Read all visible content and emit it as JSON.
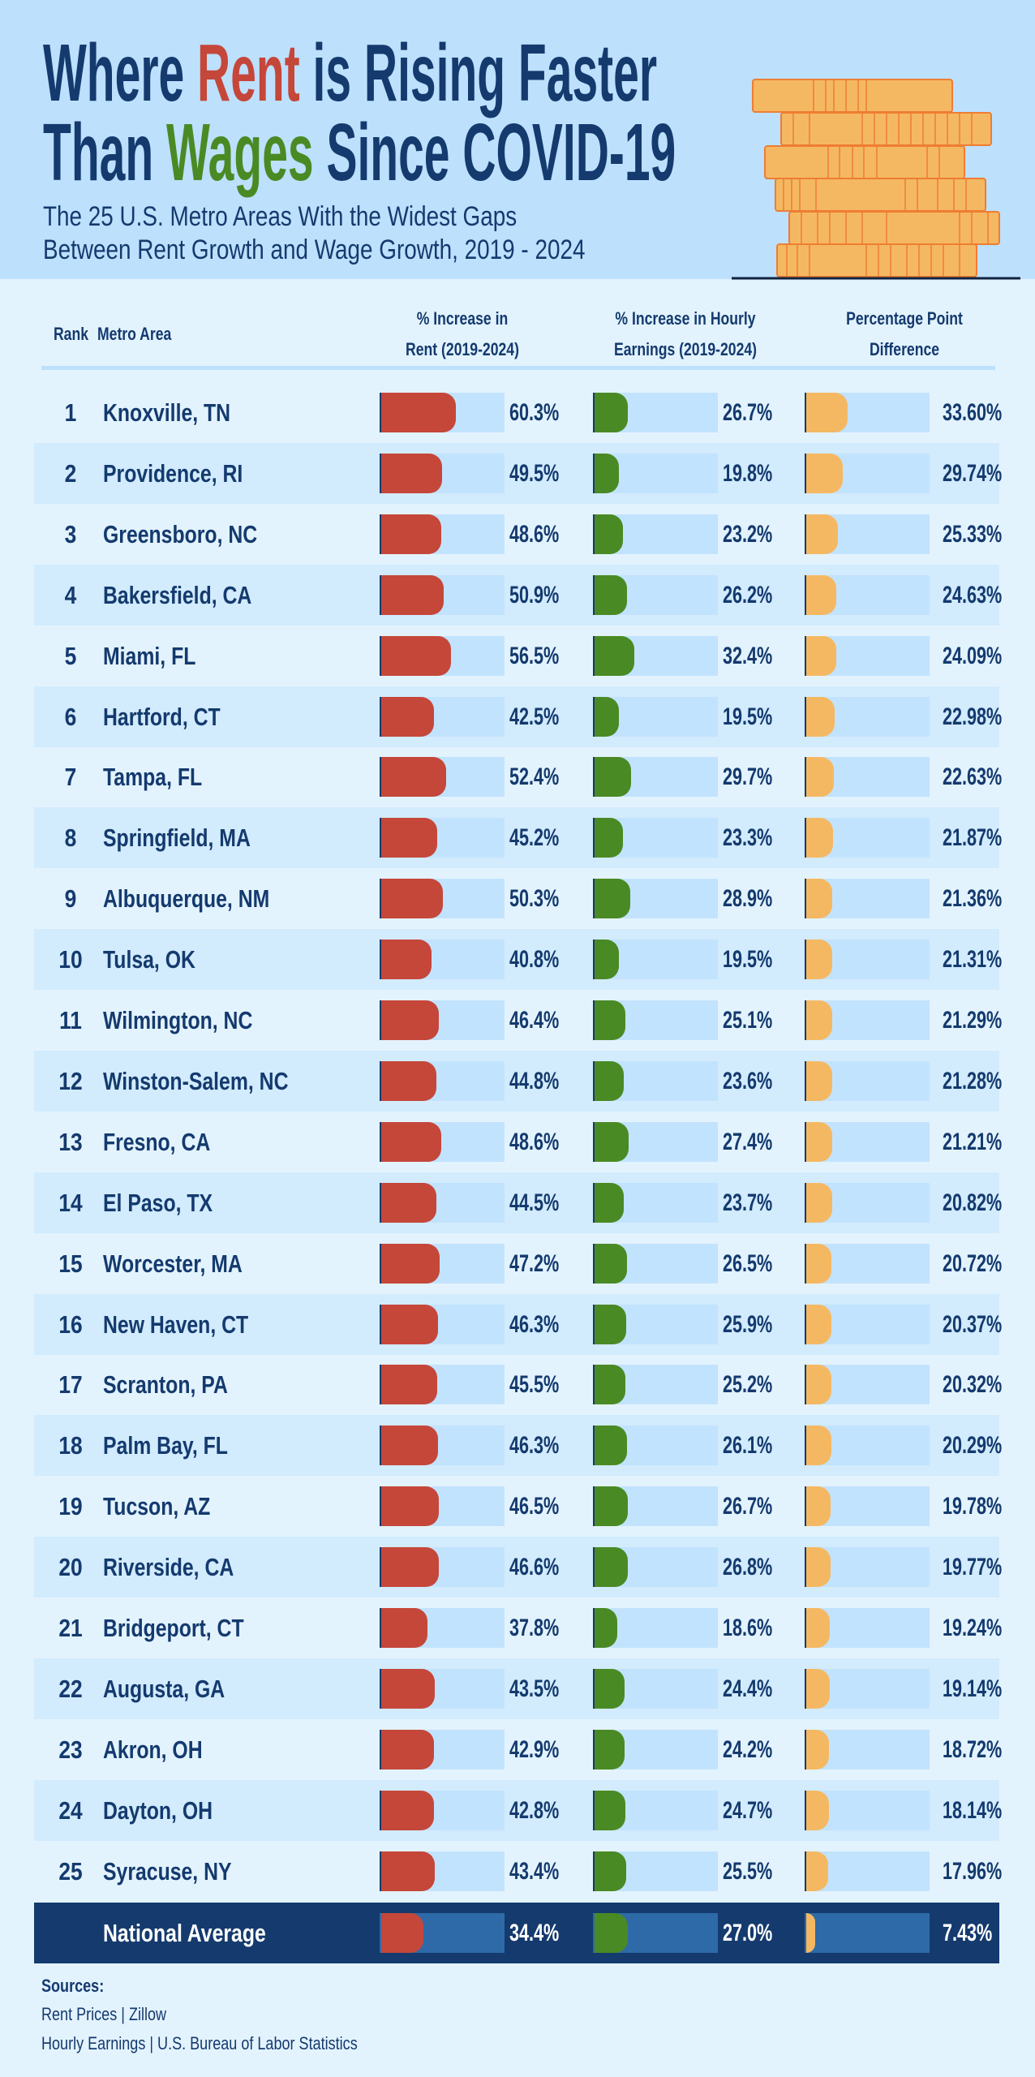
{
  "header": {
    "title_line1": {
      "pre": "Where ",
      "rent": "Rent",
      "post": " is Rising Faster"
    },
    "title_line2": {
      "pre": "Than ",
      "wages": "Wages",
      "post": " Since COVID-19"
    },
    "subtitle_line1": "The 25 U.S. Metro Areas With the Widest Gaps",
    "subtitle_line2": "Between Rent Growth and Wage Growth, 2019 - 2024",
    "illustration": "coin-stack-icon"
  },
  "columns": {
    "rank": "Rank",
    "metro": "Metro Area",
    "rent_1": "% Increase in",
    "rent_2": "Rent (2019-2024)",
    "wage_1": "% Increase in Hourly",
    "wage_2": "Earnings (2019-2024)",
    "diff_1": "Percentage Point",
    "diff_2": "Difference"
  },
  "colors": {
    "rent": "#c5473a",
    "wages": "#4a8a24",
    "difference": "#f5b862",
    "navy": "#143a6e",
    "bar_bg": "#c2e3fd"
  },
  "chart_data": {
    "type": "table",
    "bar_scale": [
      0,
      100
    ],
    "rows": [
      {
        "rank": "1",
        "metro": "Knoxville, TN",
        "rent": 60.3,
        "rent_label": "60.3%",
        "wage": 26.7,
        "wage_label": "26.7%",
        "diff": 33.6,
        "diff_label": "33.60%"
      },
      {
        "rank": "2",
        "metro": "Providence, RI",
        "rent": 49.5,
        "rent_label": "49.5%",
        "wage": 19.8,
        "wage_label": "19.8%",
        "diff": 29.74,
        "diff_label": "29.74%"
      },
      {
        "rank": "3",
        "metro": "Greensboro, NC",
        "rent": 48.6,
        "rent_label": "48.6%",
        "wage": 23.2,
        "wage_label": "23.2%",
        "diff": 25.33,
        "diff_label": "25.33%"
      },
      {
        "rank": "4",
        "metro": "Bakersfield, CA",
        "rent": 50.9,
        "rent_label": "50.9%",
        "wage": 26.2,
        "wage_label": "26.2%",
        "diff": 24.63,
        "diff_label": "24.63%"
      },
      {
        "rank": "5",
        "metro": "Miami, FL",
        "rent": 56.5,
        "rent_label": "56.5%",
        "wage": 32.4,
        "wage_label": "32.4%",
        "diff": 24.09,
        "diff_label": "24.09%"
      },
      {
        "rank": "6",
        "metro": "Hartford, CT",
        "rent": 42.5,
        "rent_label": "42.5%",
        "wage": 19.5,
        "wage_label": "19.5%",
        "diff": 22.98,
        "diff_label": "22.98%"
      },
      {
        "rank": "7",
        "metro": "Tampa, FL",
        "rent": 52.4,
        "rent_label": "52.4%",
        "wage": 29.7,
        "wage_label": "29.7%",
        "diff": 22.63,
        "diff_label": "22.63%"
      },
      {
        "rank": "8",
        "metro": "Springfield, MA",
        "rent": 45.2,
        "rent_label": "45.2%",
        "wage": 23.3,
        "wage_label": "23.3%",
        "diff": 21.87,
        "diff_label": "21.87%"
      },
      {
        "rank": "9",
        "metro": "Albuquerque, NM",
        "rent": 50.3,
        "rent_label": "50.3%",
        "wage": 28.9,
        "wage_label": "28.9%",
        "diff": 21.36,
        "diff_label": "21.36%"
      },
      {
        "rank": "10",
        "metro": "Tulsa, OK",
        "rent": 40.8,
        "rent_label": "40.8%",
        "wage": 19.5,
        "wage_label": "19.5%",
        "diff": 21.31,
        "diff_label": "21.31%"
      },
      {
        "rank": "11",
        "metro": "Wilmington, NC",
        "rent": 46.4,
        "rent_label": "46.4%",
        "wage": 25.1,
        "wage_label": "25.1%",
        "diff": 21.29,
        "diff_label": "21.29%"
      },
      {
        "rank": "12",
        "metro": "Winston-Salem, NC",
        "rent": 44.8,
        "rent_label": "44.8%",
        "wage": 23.6,
        "wage_label": "23.6%",
        "diff": 21.28,
        "diff_label": "21.28%"
      },
      {
        "rank": "13",
        "metro": "Fresno, CA",
        "rent": 48.6,
        "rent_label": "48.6%",
        "wage": 27.4,
        "wage_label": "27.4%",
        "diff": 21.21,
        "diff_label": "21.21%"
      },
      {
        "rank": "14",
        "metro": "El Paso, TX",
        "rent": 44.5,
        "rent_label": "44.5%",
        "wage": 23.7,
        "wage_label": "23.7%",
        "diff": 20.82,
        "diff_label": "20.82%"
      },
      {
        "rank": "15",
        "metro": "Worcester, MA",
        "rent": 47.2,
        "rent_label": "47.2%",
        "wage": 26.5,
        "wage_label": "26.5%",
        "diff": 20.72,
        "diff_label": "20.72%"
      },
      {
        "rank": "16",
        "metro": "New Haven, CT",
        "rent": 46.3,
        "rent_label": "46.3%",
        "wage": 25.9,
        "wage_label": "25.9%",
        "diff": 20.37,
        "diff_label": "20.37%"
      },
      {
        "rank": "17",
        "metro": "Scranton, PA",
        "rent": 45.5,
        "rent_label": "45.5%",
        "wage": 25.2,
        "wage_label": "25.2%",
        "diff": 20.32,
        "diff_label": "20.32%"
      },
      {
        "rank": "18",
        "metro": "Palm Bay, FL",
        "rent": 46.3,
        "rent_label": "46.3%",
        "wage": 26.1,
        "wage_label": "26.1%",
        "diff": 20.29,
        "diff_label": "20.29%"
      },
      {
        "rank": "19",
        "metro": "Tucson, AZ",
        "rent": 46.5,
        "rent_label": "46.5%",
        "wage": 26.7,
        "wage_label": "26.7%",
        "diff": 19.78,
        "diff_label": "19.78%"
      },
      {
        "rank": "20",
        "metro": "Riverside, CA",
        "rent": 46.6,
        "rent_label": "46.6%",
        "wage": 26.8,
        "wage_label": "26.8%",
        "diff": 19.77,
        "diff_label": "19.77%"
      },
      {
        "rank": "21",
        "metro": "Bridgeport, CT",
        "rent": 37.8,
        "rent_label": "37.8%",
        "wage": 18.6,
        "wage_label": "18.6%",
        "diff": 19.24,
        "diff_label": "19.24%"
      },
      {
        "rank": "22",
        "metro": "Augusta, GA",
        "rent": 43.5,
        "rent_label": "43.5%",
        "wage": 24.4,
        "wage_label": "24.4%",
        "diff": 19.14,
        "diff_label": "19.14%"
      },
      {
        "rank": "23",
        "metro": "Akron, OH",
        "rent": 42.9,
        "rent_label": "42.9%",
        "wage": 24.2,
        "wage_label": "24.2%",
        "diff": 18.72,
        "diff_label": "18.72%"
      },
      {
        "rank": "24",
        "metro": "Dayton, OH",
        "rent": 42.8,
        "rent_label": "42.8%",
        "wage": 24.7,
        "wage_label": "24.7%",
        "diff": 18.14,
        "diff_label": "18.14%"
      },
      {
        "rank": "25",
        "metro": "Syracuse, NY",
        "rent": 43.4,
        "rent_label": "43.4%",
        "wage": 25.5,
        "wage_label": "25.5%",
        "diff": 17.96,
        "diff_label": "17.96%"
      }
    ],
    "national": {
      "metro": "National Average",
      "rent": 34.4,
      "rent_label": "34.4%",
      "wage": 27.0,
      "wage_label": "27.0%",
      "diff": 7.43,
      "diff_label": "7.43%"
    }
  },
  "sources": {
    "heading": "Sources:",
    "line1": "Rent Prices | Zillow",
    "line2": "Hourly Earnings | U.S. Bureau of Labor Statistics"
  }
}
